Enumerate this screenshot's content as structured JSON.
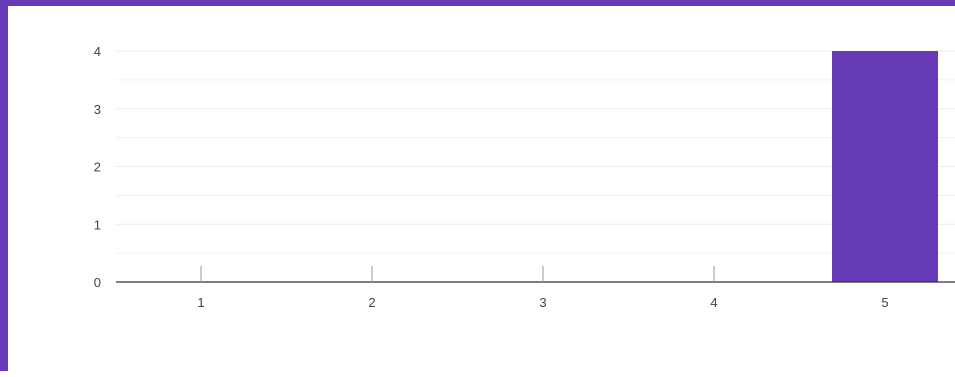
{
  "colors": {
    "accent": "#673ab7",
    "bar": "#673ab7",
    "gridline": "#ececec",
    "axis": "#333333",
    "tick_label": "#444444"
  },
  "chart_data": {
    "type": "bar",
    "categories": [
      "1",
      "2",
      "3",
      "4",
      "5"
    ],
    "values": [
      0,
      0,
      0,
      0,
      4
    ],
    "ylim": [
      0,
      4
    ],
    "yticks": [
      "0",
      "1",
      "2",
      "3",
      "4"
    ],
    "grid": true,
    "legend": "none"
  }
}
